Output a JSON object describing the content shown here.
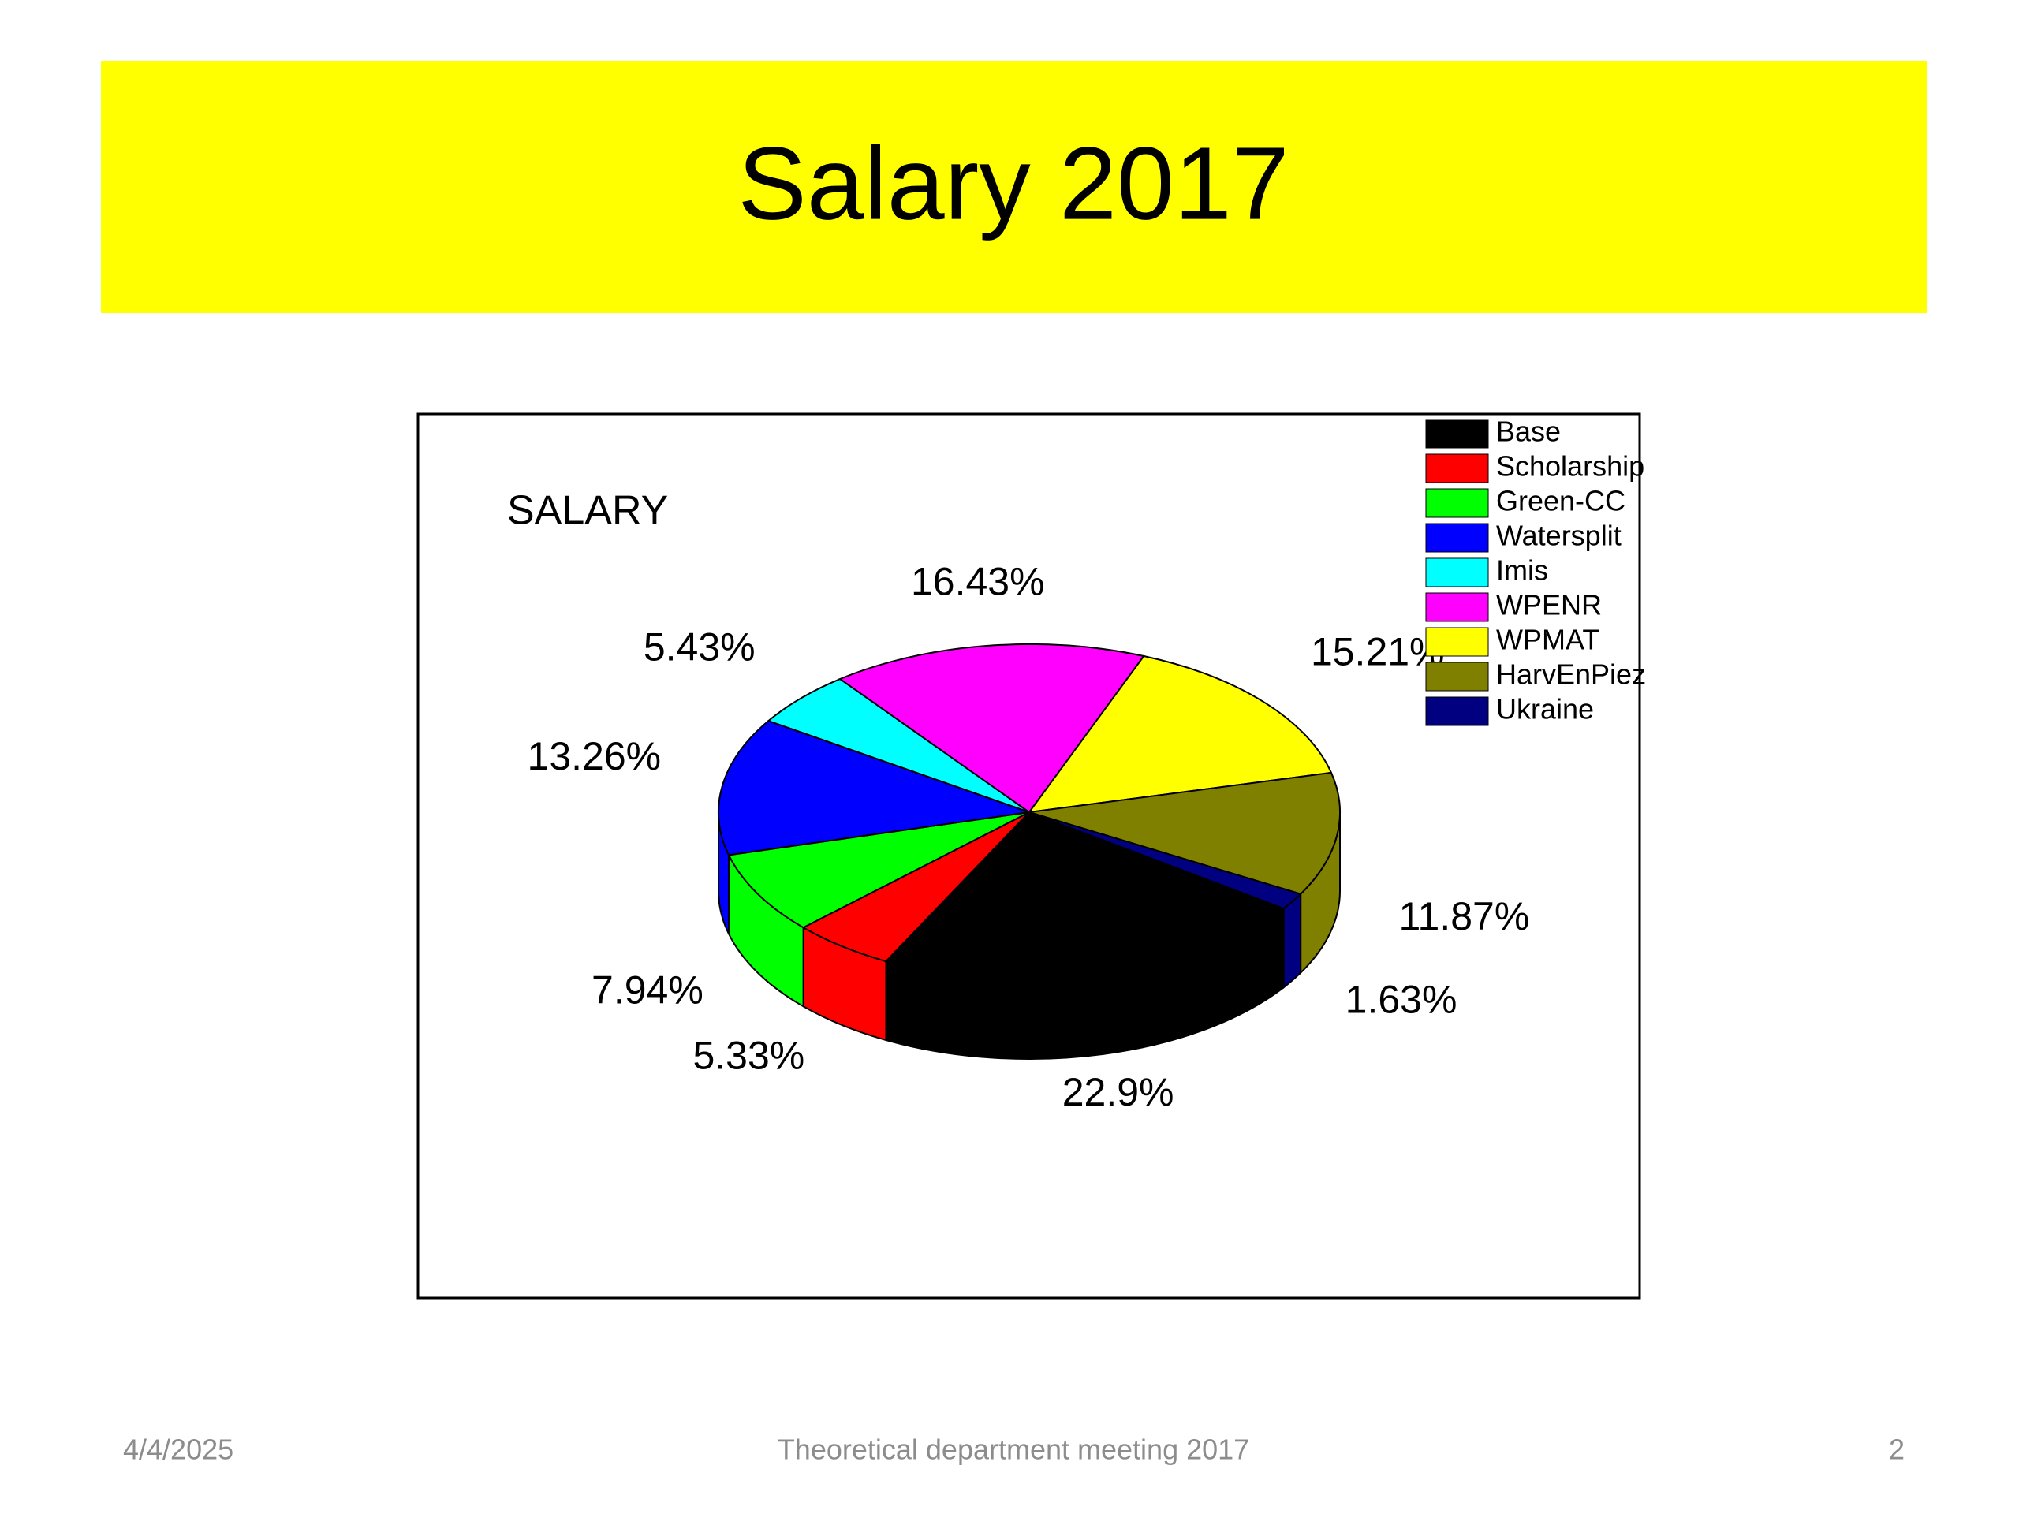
{
  "slide": {
    "title": "Salary 2017",
    "footer_date": "4/4/2025",
    "footer_text": "Theoretical department meeting 2017",
    "page_number": "2"
  },
  "chart_data": {
    "type": "pie3d",
    "title": "SALARY",
    "categories": [
      "Base",
      "Scholarship",
      "Green-CC",
      "Watersplit",
      "Imis",
      "WPENR",
      "WPMAT",
      "HarvEnPiez",
      "Ukraine"
    ],
    "values": [
      22.9,
      5.33,
      7.94,
      13.26,
      5.43,
      16.43,
      15.21,
      11.87,
      1.63
    ],
    "value_labels": [
      "22.9%",
      "5.33%",
      "7.94%",
      "13.26%",
      "5.43%",
      "16.43%",
      "15.21%",
      "11.87%",
      "1.63%"
    ],
    "colors": [
      "#000000",
      "#ff0000",
      "#00ff00",
      "#0000ff",
      "#00ffff",
      "#ff00ff",
      "#ffff00",
      "#808000",
      "#000080"
    ],
    "legend": "upper right"
  }
}
